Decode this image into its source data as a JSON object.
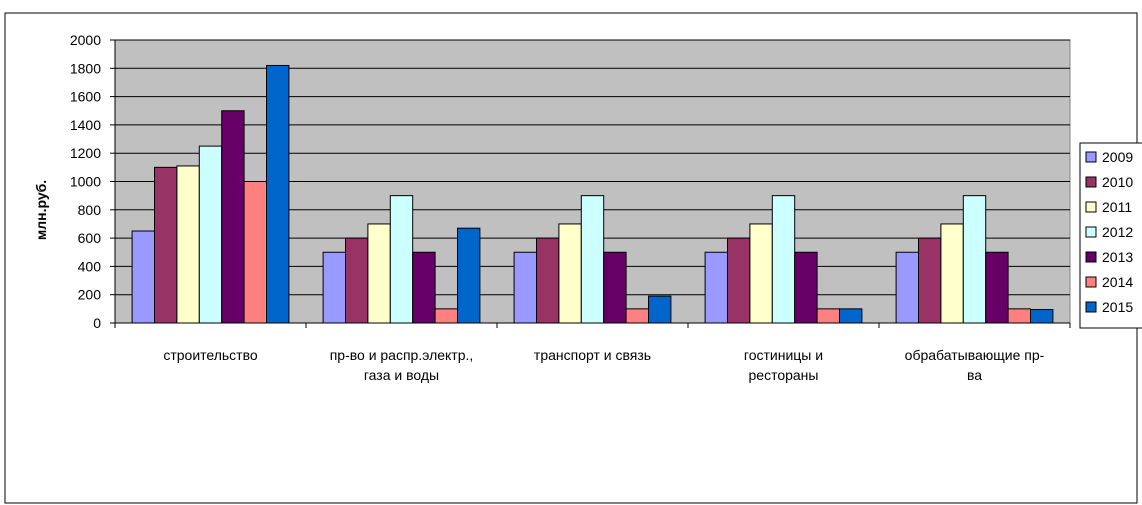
{
  "chart_data": {
    "type": "bar",
    "title": "",
    "xlabel": "",
    "ylabel": "млн.руб.",
    "ylim": [
      0,
      2000
    ],
    "yticks": [
      0,
      200,
      400,
      600,
      800,
      1000,
      1200,
      1400,
      1600,
      1800,
      2000
    ],
    "grid": true,
    "legend_position": "right",
    "plot_background": "#c0c0c0",
    "categories": [
      [
        "строительство"
      ],
      [
        "пр-во и распр.электр.,",
        "газа и воды"
      ],
      [
        "транспорт и связь"
      ],
      [
        "гостиницы и",
        "рестораны"
      ],
      [
        "обрабатывающие пр-",
        "ва"
      ]
    ],
    "series": [
      {
        "name": "2009",
        "color": "#9999ff",
        "values": [
          650,
          500,
          500,
          500,
          500
        ]
      },
      {
        "name": "2010",
        "color": "#993366",
        "values": [
          1100,
          600,
          600,
          600,
          600
        ]
      },
      {
        "name": "2011",
        "color": "#ffffcc",
        "values": [
          1110,
          700,
          700,
          700,
          700
        ]
      },
      {
        "name": "2012",
        "color": "#ccffff",
        "values": [
          1250,
          900,
          900,
          900,
          900
        ]
      },
      {
        "name": "2013",
        "color": "#660066",
        "values": [
          1500,
          500,
          500,
          500,
          500
        ]
      },
      {
        "name": "2014",
        "color": "#ff8080",
        "values": [
          1000,
          100,
          100,
          100,
          100
        ]
      },
      {
        "name": "2015",
        "color": "#0066cc",
        "values": [
          1820,
          670,
          190,
          100,
          95
        ]
      }
    ]
  }
}
